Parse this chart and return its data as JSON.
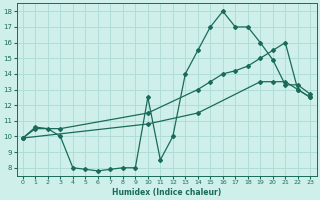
{
  "xlabel": "Humidex (Indice chaleur)",
  "bg_color": "#cff0ea",
  "grid_color": "#b0ddd8",
  "line_color": "#1a6b5a",
  "xlim": [
    -0.5,
    23.5
  ],
  "ylim": [
    7.5,
    18.5
  ],
  "xticks": [
    0,
    1,
    2,
    3,
    4,
    5,
    6,
    7,
    8,
    9,
    10,
    11,
    12,
    13,
    14,
    15,
    16,
    17,
    18,
    19,
    20,
    21,
    22,
    23
  ],
  "yticks": [
    8,
    9,
    10,
    11,
    12,
    13,
    14,
    15,
    16,
    17,
    18
  ],
  "line1_x": [
    0,
    1,
    2,
    3,
    4,
    5,
    6,
    7,
    8,
    9,
    10,
    11,
    12,
    13,
    14,
    15,
    16,
    17,
    18,
    19,
    20,
    21,
    22,
    23
  ],
  "line1_y": [
    9.9,
    10.6,
    10.5,
    10.0,
    8.0,
    7.9,
    7.8,
    7.9,
    8.0,
    8.0,
    12.5,
    8.5,
    10.0,
    14.0,
    15.5,
    17.0,
    18.0,
    17.0,
    17.0,
    16.0,
    14.9,
    13.3,
    13.3,
    12.7
  ],
  "line2_x": [
    0,
    1,
    3,
    10,
    14,
    15,
    16,
    17,
    18,
    19,
    20,
    21,
    22,
    23
  ],
  "line2_y": [
    9.9,
    10.5,
    10.5,
    11.5,
    13.0,
    13.5,
    14.0,
    14.2,
    14.5,
    15.0,
    15.5,
    16.0,
    13.0,
    12.5
  ],
  "line3_x": [
    0,
    10,
    14,
    19,
    20,
    21,
    22,
    23
  ],
  "line3_y": [
    9.9,
    10.8,
    11.5,
    13.5,
    13.5,
    13.5,
    13.0,
    12.5
  ]
}
